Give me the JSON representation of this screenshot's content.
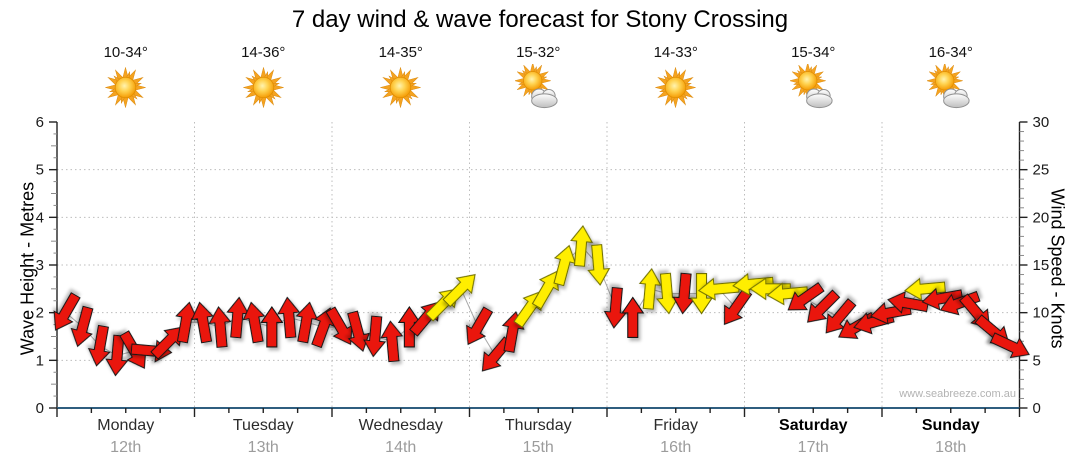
{
  "chart_data": {
    "type": "wind-arrow-forecast",
    "title": "7 day wind & wave forecast for Stony Crossing",
    "watermark": "www.seabreeze.com.au",
    "points_per_day": 8,
    "axes": {
      "left": {
        "label": "Wave Height - Metres",
        "min": 0,
        "max": 6,
        "ticks": [
          0,
          1,
          2,
          3,
          4,
          5,
          6
        ]
      },
      "right": {
        "label": "Wind Speed - Knots",
        "min": 0,
        "max": 30,
        "ticks": [
          0,
          5,
          10,
          15,
          20,
          25,
          30
        ]
      }
    },
    "days": [
      {
        "name": "Monday",
        "date": "12th",
        "temp": "10-34°",
        "icon": "sun",
        "bold": false,
        "wind_knots": [
          10,
          8.5,
          6.5,
          5.5,
          6,
          6,
          7,
          9
        ],
        "wind_dir_deg": [
          210,
          195,
          190,
          185,
          150,
          95,
          45,
          10
        ],
        "arrow_colors": [
          "red",
          "red",
          "red",
          "red",
          "red",
          "red",
          "red",
          "red"
        ]
      },
      {
        "name": "Tuesday",
        "date": "13th",
        "temp": "14-36°",
        "icon": "sun",
        "bold": false,
        "wind_knots": [
          9,
          8.5,
          9.5,
          9,
          8.5,
          9.5,
          9,
          8.5
        ],
        "wind_dir_deg": [
          350,
          355,
          5,
          350,
          0,
          355,
          10,
          20
        ],
        "arrow_colors": [
          "red",
          "red",
          "red",
          "red",
          "red",
          "red",
          "red",
          "red"
        ]
      },
      {
        "name": "Wednesday",
        "date": "14th",
        "temp": "14-35°",
        "icon": "sun",
        "bold": false,
        "wind_knots": [
          8.5,
          8,
          7.5,
          7,
          8.5,
          9.5,
          11,
          12.5
        ],
        "wind_dir_deg": [
          150,
          165,
          185,
          355,
          0,
          40,
          45,
          45
        ],
        "arrow_colors": [
          "red",
          "red",
          "red",
          "red",
          "red",
          "red",
          "yellow",
          "yellow"
        ]
      },
      {
        "name": "Thursday",
        "date": "15th",
        "temp": "15-32°",
        "icon": "suncloud",
        "bold": false,
        "wind_knots": [
          8.5,
          5.5,
          8,
          10.5,
          12.5,
          15,
          17,
          15
        ],
        "wind_dir_deg": [
          210,
          220,
          10,
          35,
          30,
          15,
          5,
          175
        ],
        "arrow_colors": [
          "red",
          "red",
          "red",
          "yellow",
          "yellow",
          "yellow",
          "yellow",
          "yellow"
        ]
      },
      {
        "name": "Friday",
        "date": "16th",
        "temp": "14-33°",
        "icon": "sun",
        "bold": false,
        "wind_knots": [
          10.5,
          9.5,
          12.5,
          12,
          12,
          12,
          12.5,
          10.5
        ],
        "wind_dir_deg": [
          185,
          0,
          5,
          175,
          185,
          180,
          265,
          215
        ],
        "arrow_colors": [
          "red",
          "red",
          "yellow",
          "yellow",
          "red",
          "yellow",
          "yellow",
          "red"
        ]
      },
      {
        "name": "Saturday",
        "date": "17th",
        "temp": "15-34°",
        "icon": "suncloud",
        "bold": true,
        "wind_knots": [
          13,
          12.5,
          12,
          11.5,
          10.5,
          9.5,
          8.5,
          9
        ],
        "wind_dir_deg": [
          265,
          270,
          265,
          235,
          225,
          220,
          240,
          255
        ],
        "arrow_colors": [
          "yellow",
          "yellow",
          "yellow",
          "red",
          "red",
          "red",
          "red",
          "red"
        ]
      },
      {
        "name": "Sunday",
        "date": "18th",
        "temp": "16-34°",
        "icon": "suncloud",
        "bold": true,
        "wind_knots": [
          10,
          11,
          12.5,
          11.5,
          11,
          10,
          8,
          6.5
        ],
        "wind_dir_deg": [
          260,
          280,
          265,
          260,
          250,
          140,
          130,
          115
        ],
        "arrow_colors": [
          "red",
          "red",
          "yellow",
          "red",
          "red",
          "red",
          "red",
          "red"
        ]
      }
    ]
  },
  "colors": {
    "arrow_red": "#ea1408",
    "arrow_yellow": "#ffee00",
    "x_axis_blue": "#2f5e7f",
    "grid_gray": "#bdbdbd",
    "date_gray": "#9c9c9c"
  }
}
